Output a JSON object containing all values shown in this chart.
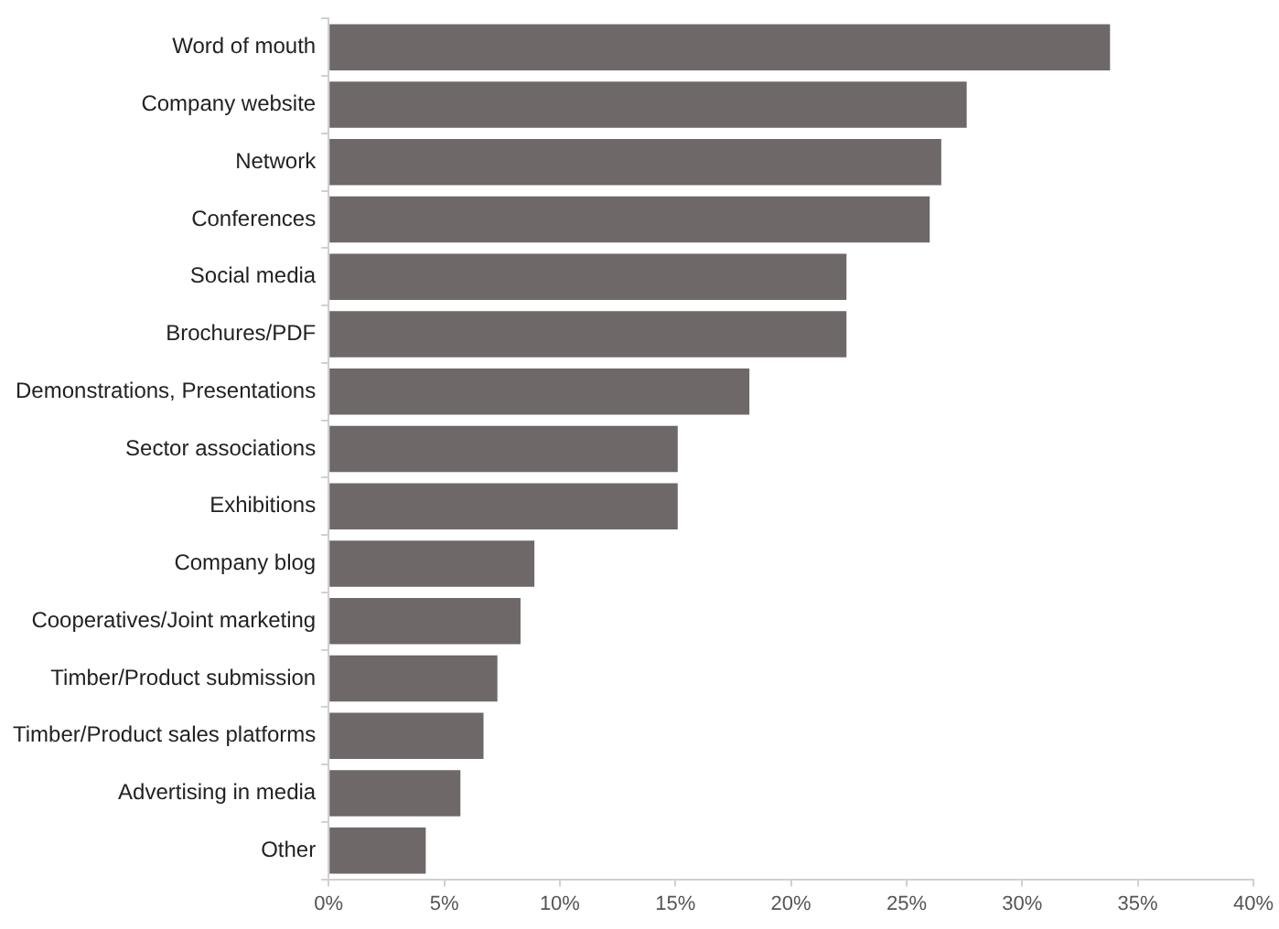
{
  "chart_data": {
    "type": "bar",
    "orientation": "horizontal",
    "categories": [
      "Word of mouth",
      "Company website",
      "Network",
      "Conferences",
      "Social media",
      "Brochures/PDF",
      "Demonstrations, Presentations",
      "Sector associations",
      "Exhibitions",
      "Company blog",
      "Cooperatives/Joint marketing",
      "Timber/Product submission",
      "Timber/Product sales platforms",
      "Advertising in media",
      "Other"
    ],
    "values": [
      33.8,
      27.6,
      26.5,
      26.0,
      22.4,
      22.4,
      18.2,
      15.1,
      15.1,
      8.9,
      8.3,
      7.3,
      6.7,
      5.7,
      4.2
    ],
    "color": "#6e6868",
    "xlim": [
      0,
      40
    ],
    "xticks": [
      {
        "value": 0,
        "label": "0%"
      },
      {
        "value": 5,
        "label": "5%"
      },
      {
        "value": 10,
        "label": "10%"
      },
      {
        "value": 15,
        "label": "15%"
      },
      {
        "value": 20,
        "label": "20%"
      },
      {
        "value": 25,
        "label": "25%"
      },
      {
        "value": 30,
        "label": "30%"
      },
      {
        "value": 35,
        "label": "35%"
      },
      {
        "value": 40,
        "label": "40%"
      }
    ],
    "grid": false,
    "legend": false
  }
}
